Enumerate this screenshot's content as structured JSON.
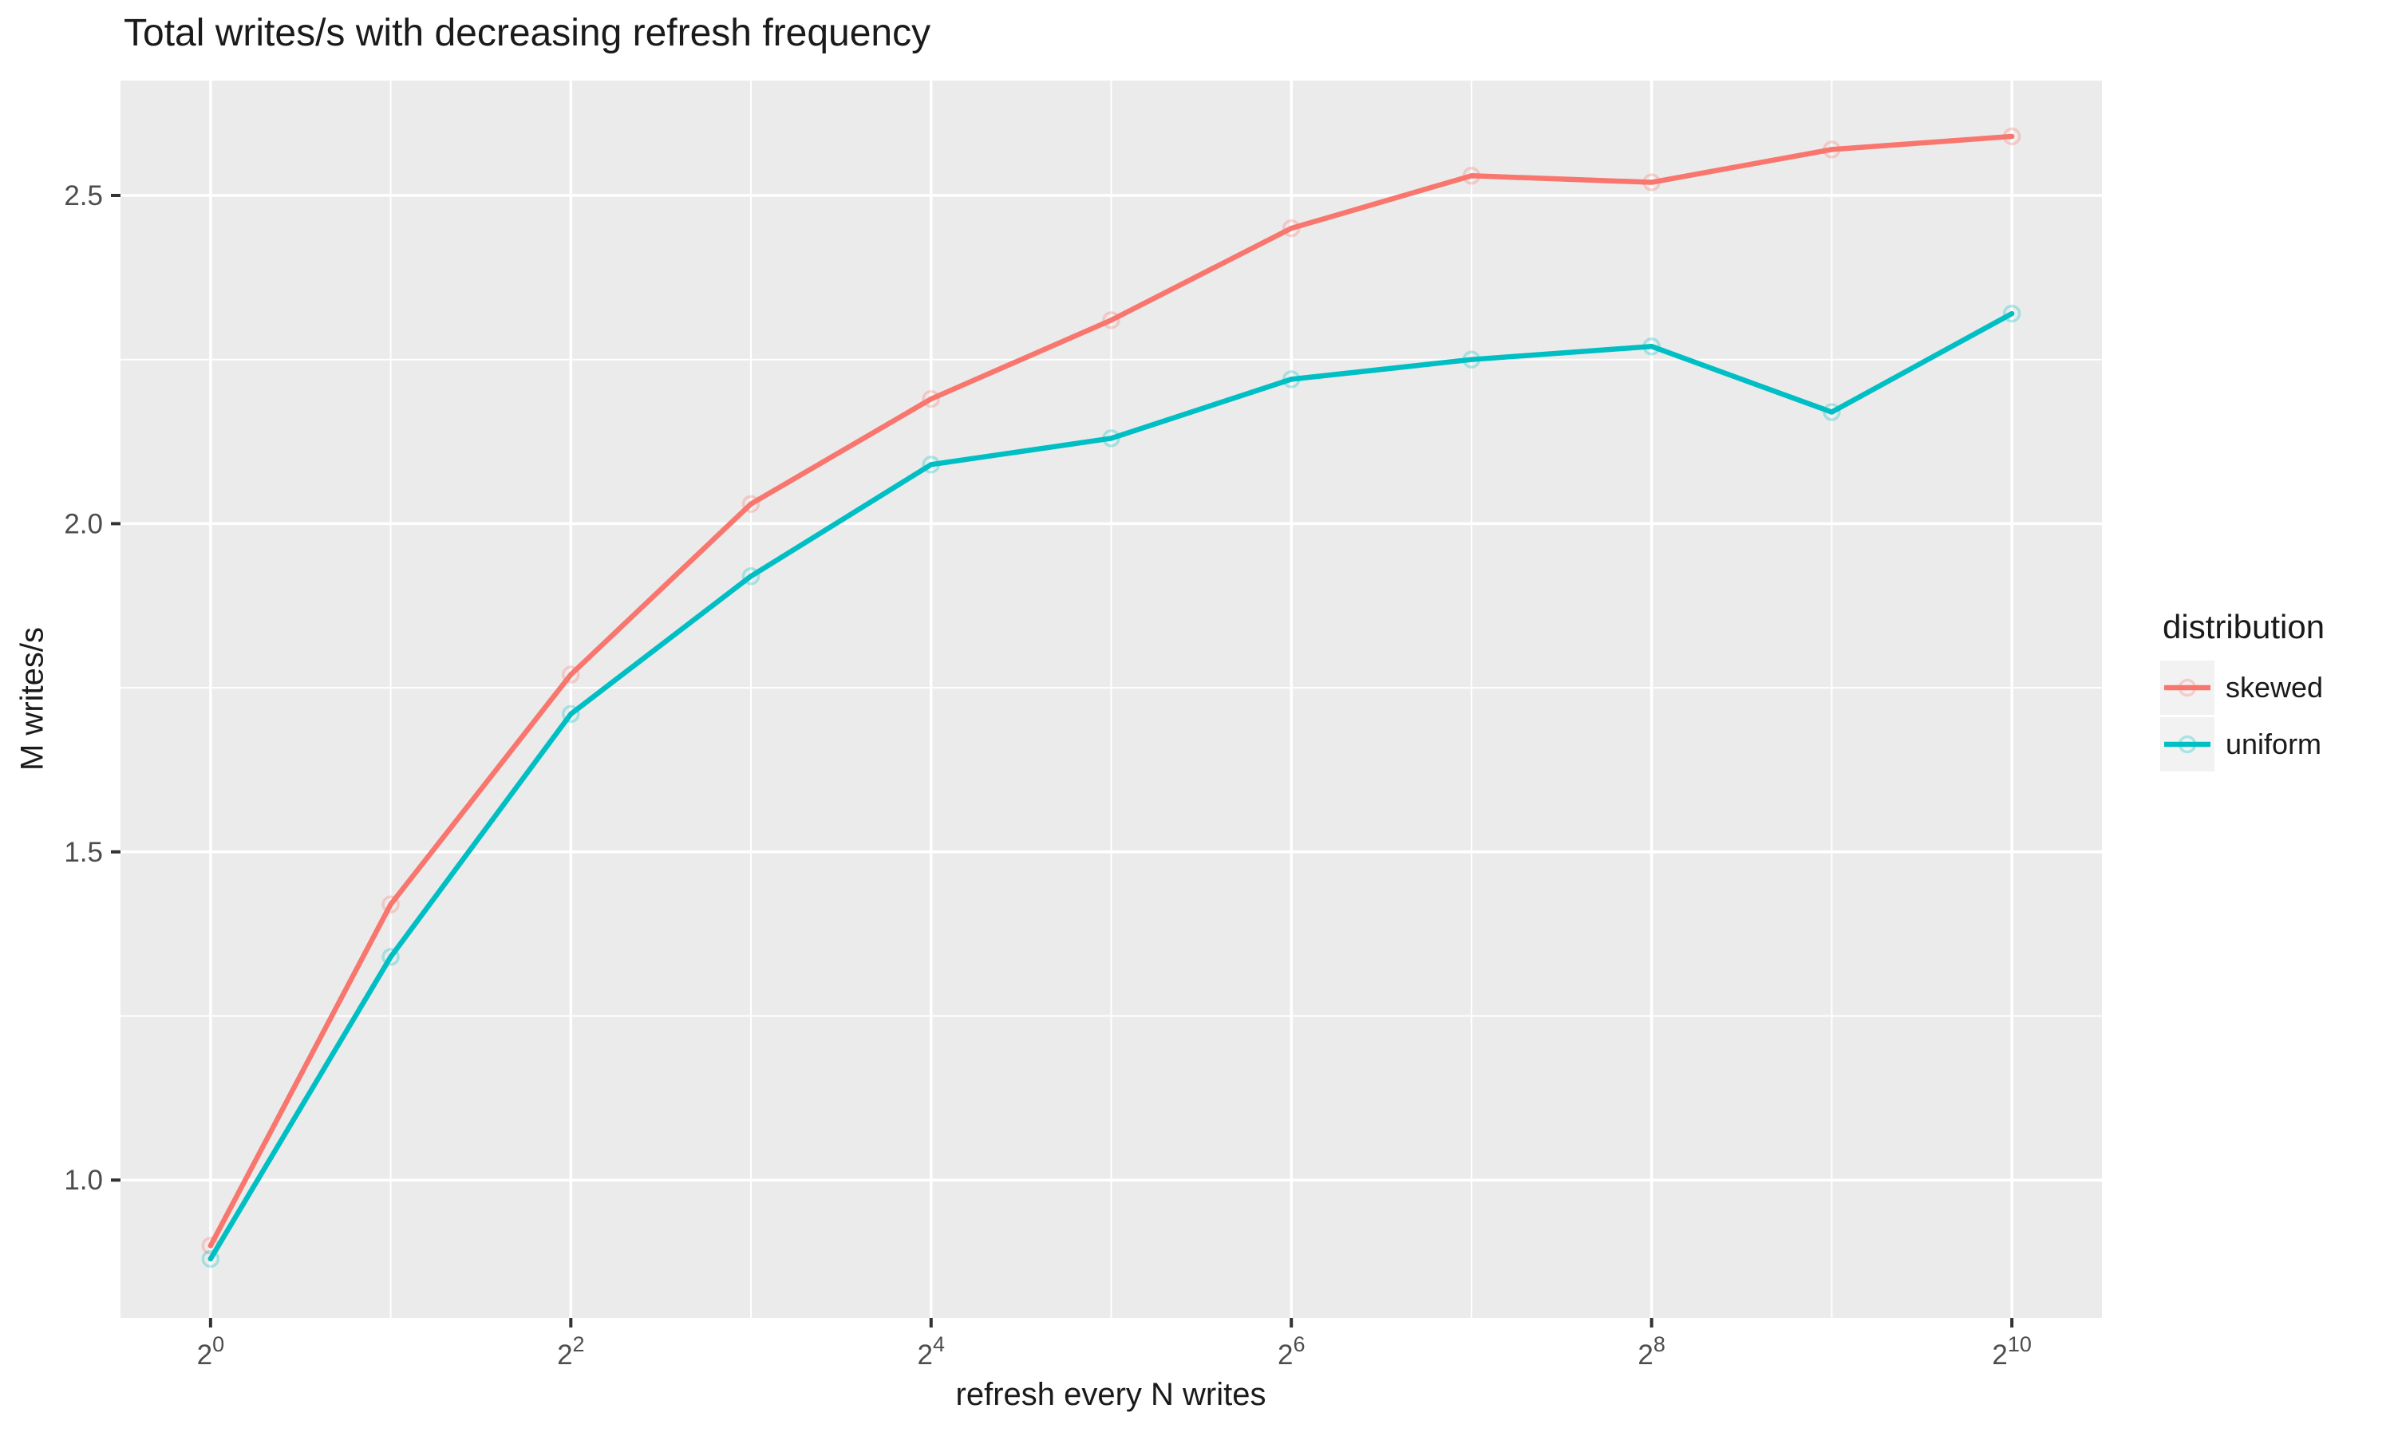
{
  "chart_data": {
    "type": "line",
    "title": "Total writes/s with decreasing refresh frequency",
    "xlabel": "refresh every N writes",
    "ylabel": "M writes/s",
    "legend_title": "distribution",
    "legend_position": "right",
    "x_scale": "log2",
    "x": [
      1,
      2,
      4,
      8,
      16,
      32,
      64,
      128,
      256,
      512,
      1024
    ],
    "series": [
      {
        "name": "skewed",
        "color": "#F8766D",
        "values": [
          0.9,
          1.42,
          1.77,
          2.03,
          2.19,
          2.31,
          2.45,
          2.53,
          2.52,
          2.57,
          2.59
        ]
      },
      {
        "name": "uniform",
        "color": "#00BFC4",
        "values": [
          0.88,
          1.34,
          1.71,
          1.92,
          2.09,
          2.13,
          2.22,
          2.25,
          2.27,
          2.17,
          2.32
        ]
      }
    ],
    "xlim_log2": [
      -0.5,
      10.5
    ],
    "ylim": [
      0.79,
      2.675
    ],
    "x_ticks": [
      {
        "exp": 0,
        "base": "2",
        "sup": "0"
      },
      {
        "exp": 2,
        "base": "2",
        "sup": "2"
      },
      {
        "exp": 4,
        "base": "2",
        "sup": "4"
      },
      {
        "exp": 6,
        "base": "2",
        "sup": "6"
      },
      {
        "exp": 8,
        "base": "2",
        "sup": "8"
      },
      {
        "exp": 10,
        "base": "2",
        "sup": "10"
      }
    ],
    "x_minor_exps": [
      1,
      3,
      5,
      7,
      9
    ],
    "y_ticks": [
      {
        "value": 2.5,
        "label": "2.5"
      },
      {
        "value": 2.0,
        "label": "2.0"
      },
      {
        "value": 1.5,
        "label": "1.5"
      },
      {
        "value": 1.0,
        "label": "1.0"
      }
    ],
    "y_minor": [
      1.25,
      1.75,
      2.25
    ],
    "grid": true,
    "colors": {
      "panel_bg": "#EBEBEB",
      "grid": "#FFFFFF",
      "tick_mark": "#333333",
      "tick_label": "#4D4D4D",
      "text": "#1A1A1A",
      "legend_key_bg": "#F2F2F2"
    }
  }
}
